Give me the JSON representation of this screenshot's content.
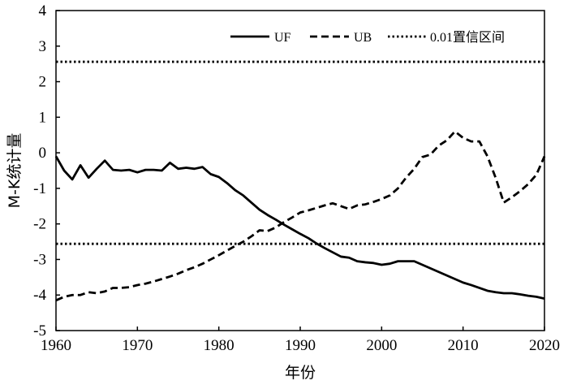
{
  "chart_data": {
    "type": "line",
    "xlabel": "年份",
    "ylabel": "M-K统计量",
    "xlim": [
      1960,
      2020
    ],
    "ylim": [
      -5,
      4
    ],
    "xticks": [
      1960,
      1970,
      1980,
      1990,
      2000,
      2010,
      2020
    ],
    "yticks": [
      -5,
      -4,
      -3,
      -2,
      -1,
      0,
      1,
      2,
      3,
      4
    ],
    "legend_position": "top-right",
    "series": [
      {
        "name": "UF",
        "style": "solid",
        "x": [
          1960,
          1961,
          1962,
          1963,
          1964,
          1965,
          1966,
          1967,
          1968,
          1969,
          1970,
          1971,
          1972,
          1973,
          1974,
          1975,
          1976,
          1977,
          1978,
          1979,
          1980,
          1981,
          1982,
          1983,
          1984,
          1985,
          1986,
          1987,
          1988,
          1989,
          1990,
          1991,
          1992,
          1993,
          1994,
          1995,
          1996,
          1997,
          1998,
          1999,
          2000,
          2001,
          2002,
          2003,
          2004,
          2005,
          2006,
          2007,
          2008,
          2009,
          2010,
          2011,
          2012,
          2013,
          2014,
          2015,
          2016,
          2017,
          2018,
          2019,
          2020
        ],
        "values": [
          -0.1,
          -0.5,
          -0.75,
          -0.35,
          -0.7,
          -0.45,
          -0.22,
          -0.48,
          -0.5,
          -0.48,
          -0.55,
          -0.48,
          -0.48,
          -0.5,
          -0.28,
          -0.45,
          -0.42,
          -0.45,
          -0.4,
          -0.6,
          -0.68,
          -0.85,
          -1.05,
          -1.2,
          -1.4,
          -1.6,
          -1.75,
          -1.88,
          -2.02,
          -2.15,
          -2.28,
          -2.4,
          -2.55,
          -2.68,
          -2.8,
          -2.92,
          -2.95,
          -3.05,
          -3.08,
          -3.1,
          -3.15,
          -3.12,
          -3.05,
          -3.05,
          -3.05,
          -3.15,
          -3.25,
          -3.35,
          -3.45,
          -3.55,
          -3.65,
          -3.72,
          -3.8,
          -3.88,
          -3.92,
          -3.95,
          -3.95,
          -3.98,
          -4.02,
          -4.05,
          -4.1
        ]
      },
      {
        "name": "UB",
        "style": "dashed",
        "x": [
          1960,
          1961,
          1962,
          1963,
          1964,
          1965,
          1966,
          1967,
          1968,
          1969,
          1970,
          1971,
          1972,
          1973,
          1974,
          1975,
          1976,
          1977,
          1978,
          1979,
          1980,
          1981,
          1982,
          1983,
          1984,
          1985,
          1986,
          1987,
          1988,
          1989,
          1990,
          1991,
          1992,
          1993,
          1994,
          1995,
          1996,
          1997,
          1998,
          1999,
          2000,
          2001,
          2002,
          2003,
          2004,
          2005,
          2006,
          2007,
          2008,
          2009,
          2010,
          2011,
          2012,
          2013,
          2014,
          2015,
          2016,
          2017,
          2018,
          2019,
          2020
        ],
        "values": [
          -4.15,
          -4.05,
          -4.0,
          -4.0,
          -3.92,
          -3.95,
          -3.9,
          -3.8,
          -3.8,
          -3.78,
          -3.72,
          -3.68,
          -3.62,
          -3.55,
          -3.48,
          -3.4,
          -3.3,
          -3.22,
          -3.12,
          -3.0,
          -2.88,
          -2.75,
          -2.62,
          -2.5,
          -2.35,
          -2.18,
          -2.2,
          -2.1,
          -1.95,
          -1.82,
          -1.68,
          -1.62,
          -1.55,
          -1.48,
          -1.42,
          -1.5,
          -1.58,
          -1.48,
          -1.45,
          -1.38,
          -1.3,
          -1.2,
          -1.0,
          -0.7,
          -0.45,
          -0.12,
          -0.05,
          0.2,
          0.35,
          0.6,
          0.42,
          0.32,
          0.32,
          -0.1,
          -0.7,
          -1.4,
          -1.25,
          -1.08,
          -0.88,
          -0.62,
          -0.1
        ]
      },
      {
        "name": "0.01置信区间",
        "style": "dotted",
        "levels": [
          2.56,
          -2.56
        ]
      }
    ]
  }
}
